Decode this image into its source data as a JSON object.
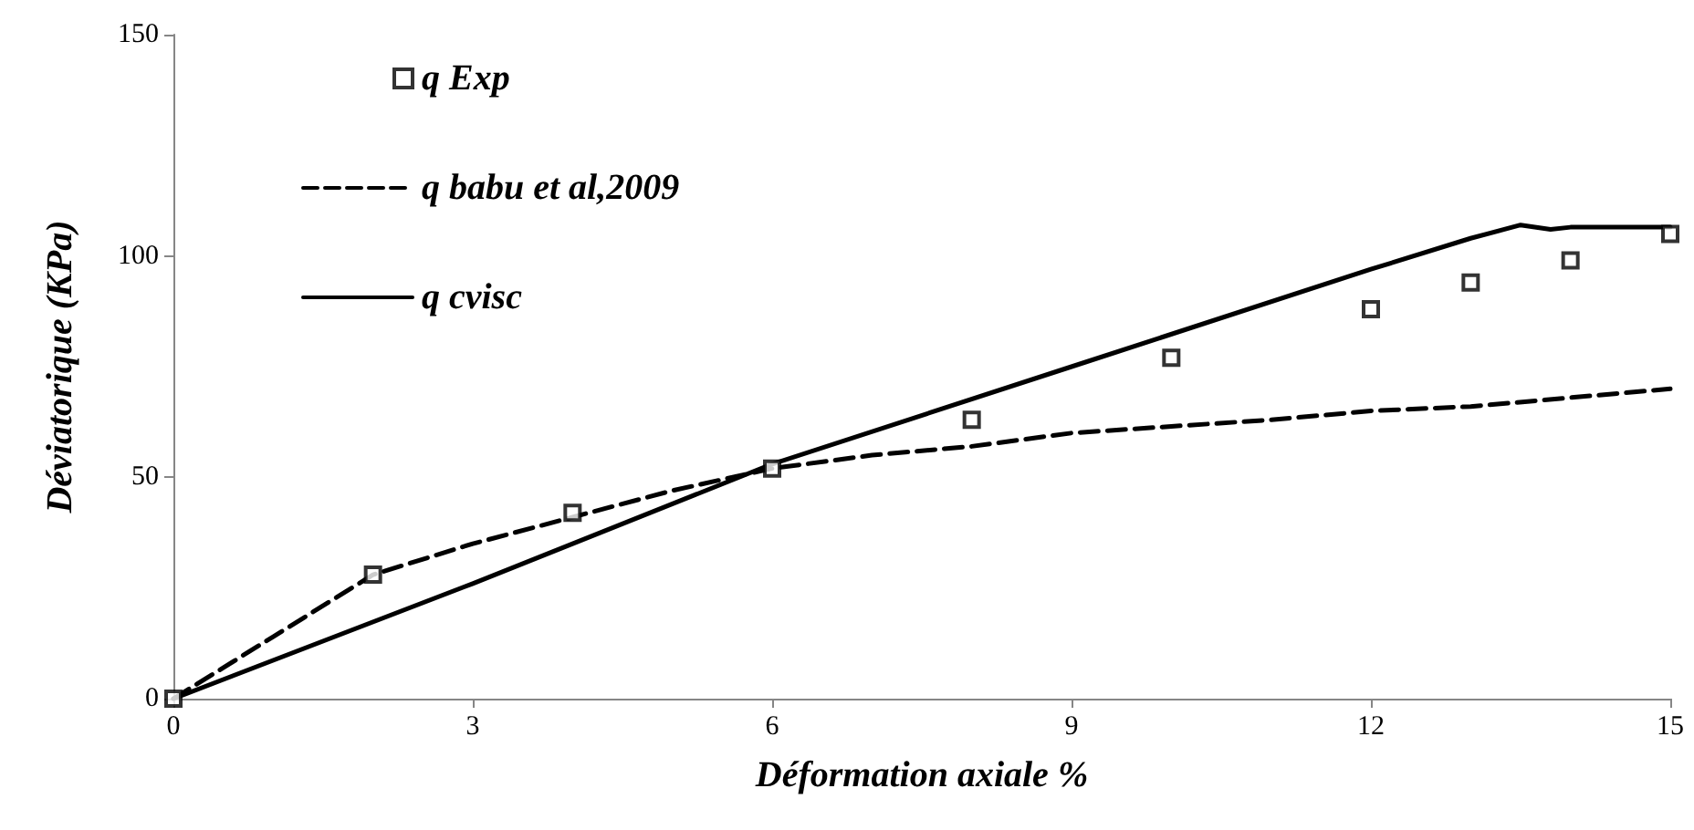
{
  "chart_data": {
    "type": "line",
    "xlabel": "Déformation axiale %",
    "ylabel": "Déviatorique (KPa)",
    "xlim": [
      0,
      15
    ],
    "xticks": [
      0,
      3,
      6,
      9,
      12,
      15
    ],
    "ylim": [
      0,
      150
    ],
    "yticks": [
      0,
      50,
      100,
      150
    ],
    "grid": false,
    "legend": "top left",
    "series": [
      {
        "name": "q Exp",
        "type": "scatter",
        "marker": "square",
        "color": "#000000",
        "x": [
          0,
          2,
          4,
          6,
          8,
          10,
          12,
          13,
          14,
          15
        ],
        "values": [
          0,
          28,
          42,
          52,
          63,
          77,
          88,
          94,
          99,
          105
        ]
      },
      {
        "name": "q babu et al,2009",
        "type": "line",
        "line_style": "dashed",
        "marker": "none",
        "color": "#000000",
        "x": [
          0,
          1,
          2,
          3,
          4,
          5,
          6,
          7,
          8,
          9,
          10,
          11,
          12,
          13,
          14,
          15
        ],
        "values": [
          0,
          14,
          28,
          35,
          41,
          47,
          52,
          55,
          57,
          60,
          61.5,
          63,
          65,
          66,
          68,
          70
        ]
      },
      {
        "name": "q cvisc",
        "type": "line",
        "line_style": "solid",
        "marker": "none",
        "color": "#000000",
        "x": [
          0,
          3,
          6,
          9,
          12,
          13,
          13.5,
          13.8,
          14,
          15
        ],
        "values": [
          0,
          26,
          53,
          75,
          97,
          104,
          107,
          106,
          106.5,
          106.5
        ]
      }
    ]
  }
}
